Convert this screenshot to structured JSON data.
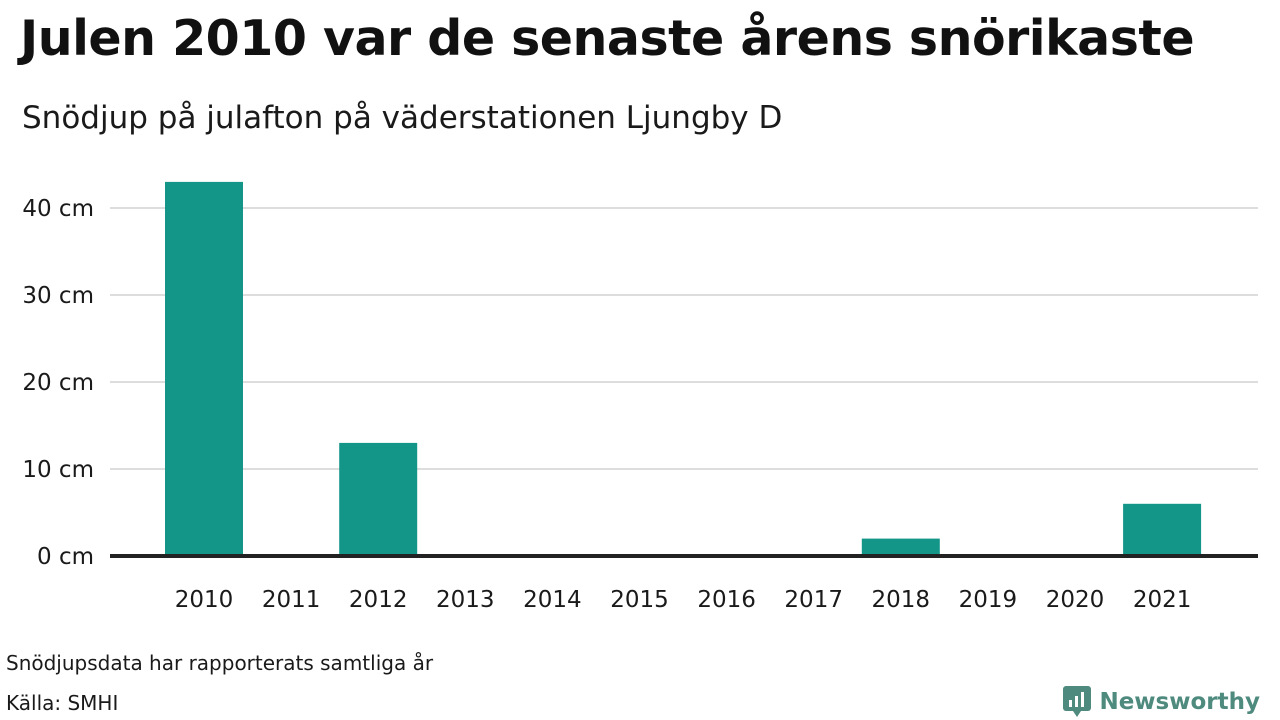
{
  "title": "Julen 2010 var de senaste årens snörikaste",
  "subtitle": "Snödjup på julafton på väderstationen Ljungby D",
  "footer": {
    "note": "Snödjupsdata har rapporterats samtliga år",
    "source": "Källa: SMHI",
    "brand": "Newsworthy"
  },
  "colors": {
    "bar": "#139688",
    "grid": "#dddddd",
    "baseline": "#222222",
    "brand": "#4e8a7e"
  },
  "chart_data": {
    "type": "bar",
    "categories": [
      "2010",
      "2011",
      "2012",
      "2013",
      "2014",
      "2015",
      "2016",
      "2017",
      "2018",
      "2019",
      "2020",
      "2021"
    ],
    "values": [
      43,
      0,
      13,
      0,
      0,
      0,
      0,
      0,
      2,
      0,
      0,
      6
    ],
    "ylim": [
      0,
      45
    ],
    "yticks": [
      0,
      10,
      20,
      30,
      40
    ],
    "ytick_labels": [
      "0 cm",
      "10 cm",
      "20 cm",
      "30 cm",
      "40 cm"
    ],
    "grid": true
  }
}
